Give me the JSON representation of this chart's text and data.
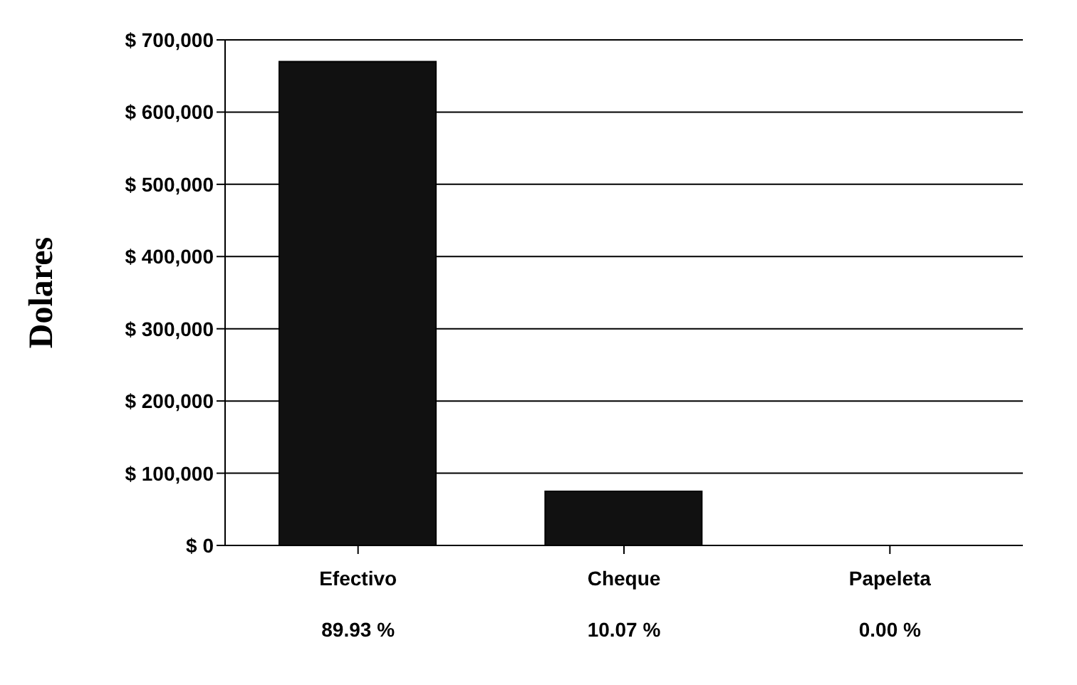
{
  "chart_data": {
    "type": "bar",
    "ylabel": "Dolares",
    "categories": [
      "Efectivo",
      "Cheque",
      "Papeleta"
    ],
    "values": [
      670000,
      75000,
      0
    ],
    "colors": [
      "#111111",
      "#111111",
      "#b5b5b5"
    ],
    "annotations": [
      "89.93 %",
      "10.07 %",
      "0.00 %"
    ],
    "ylim": [
      0,
      700000
    ],
    "yticks": [
      {
        "value": 0,
        "label": "$ 0"
      },
      {
        "value": 100000,
        "label": "$ 100,000"
      },
      {
        "value": 200000,
        "label": "$ 200,000"
      },
      {
        "value": 300000,
        "label": "$ 300,000"
      },
      {
        "value": 400000,
        "label": "$ 400,000"
      },
      {
        "value": 500000,
        "label": "$ 500,000"
      },
      {
        "value": 600000,
        "label": "$ 600,000"
      },
      {
        "value": 700000,
        "label": "$ 700,000"
      }
    ],
    "grid": "y"
  }
}
